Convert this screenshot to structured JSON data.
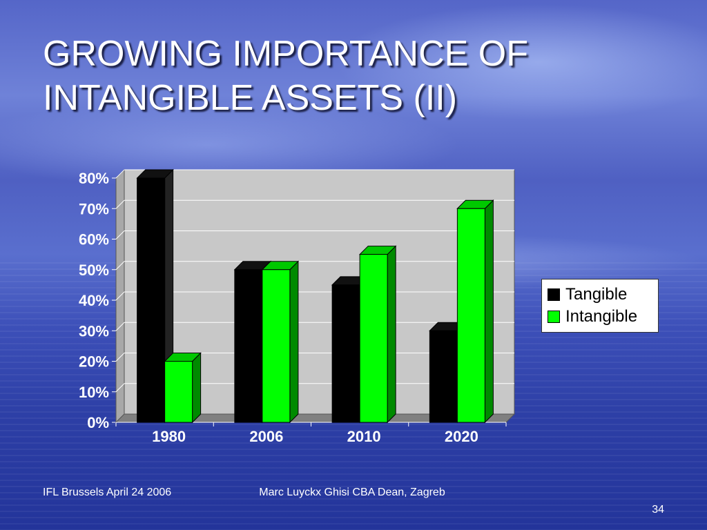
{
  "slide": {
    "title_line1": "GROWING IMPORTANCE OF",
    "title_line2": "INTANGIBLE ASSETS (II)",
    "footer_left": "IFL Brussels April 24 2006",
    "footer_middle": "Marc Luyckx Ghisi CBA  Dean, Zagreb",
    "page_number": "34"
  },
  "colors": {
    "tangible": "#000000",
    "intangible": "#00ff00",
    "plot_background": "#c8c8c8",
    "floor": "#808080"
  },
  "chart_data": {
    "type": "bar",
    "style": "3d-clustered-column",
    "categories": [
      "1980",
      "2006",
      "2010",
      "2020"
    ],
    "series": [
      {
        "name": "Tangible",
        "values": [
          80,
          50,
          45,
          30
        ]
      },
      {
        "name": "Intangible",
        "values": [
          20,
          50,
          55,
          70
        ]
      }
    ],
    "ylim": [
      0,
      80
    ],
    "yticks": [
      "0%",
      "10%",
      "20%",
      "30%",
      "40%",
      "50%",
      "60%",
      "70%",
      "80%"
    ],
    "y_unit": "%",
    "grid": true,
    "legend_position": "right"
  }
}
